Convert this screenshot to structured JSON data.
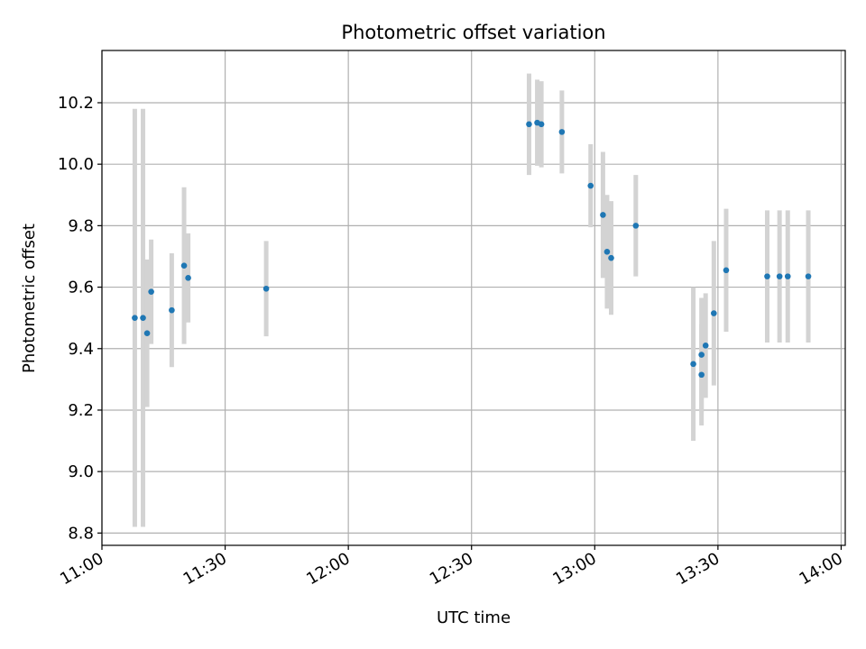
{
  "chart_data": {
    "type": "scatter",
    "title": "Photometric offset variation",
    "xlabel": "UTC time",
    "ylabel": "Photometric offset",
    "xlim": [
      "11:00",
      "14:01"
    ],
    "ylim": [
      8.76,
      10.37
    ],
    "grid": true,
    "x_ticks": [
      "11:00",
      "11:30",
      "12:00",
      "12:30",
      "13:00",
      "13:30",
      "14:00"
    ],
    "y_ticks": [
      "8.8",
      "9.0",
      "9.2",
      "9.4",
      "9.6",
      "9.8",
      "10.0",
      "10.2"
    ],
    "colors": {
      "marker": "#1f77b4",
      "errorbar": "#d3d3d3",
      "grid": "#b0b0b0"
    },
    "points": [
      {
        "x": "11:08",
        "y": 9.5,
        "err": 0.68
      },
      {
        "x": "11:10",
        "y": 9.5,
        "err": 0.68
      },
      {
        "x": "11:11",
        "y": 9.45,
        "err": 0.24
      },
      {
        "x": "11:12",
        "y": 9.585,
        "err": 0.17
      },
      {
        "x": "11:17",
        "y": 9.525,
        "err": 0.185
      },
      {
        "x": "11:20",
        "y": 9.67,
        "err": 0.255
      },
      {
        "x": "11:21",
        "y": 9.63,
        "err": 0.145
      },
      {
        "x": "11:40",
        "y": 9.595,
        "err": 0.155
      },
      {
        "x": "12:44",
        "y": 10.13,
        "err": 0.165
      },
      {
        "x": "12:46",
        "y": 10.135,
        "err": 0.14
      },
      {
        "x": "12:47",
        "y": 10.13,
        "err": 0.14
      },
      {
        "x": "12:52",
        "y": 10.105,
        "err": 0.135
      },
      {
        "x": "12:59",
        "y": 9.93,
        "err": 0.135
      },
      {
        "x": "13:02",
        "y": 9.835,
        "err": 0.205
      },
      {
        "x": "13:03",
        "y": 9.715,
        "err": 0.185
      },
      {
        "x": "13:04",
        "y": 9.695,
        "err": 0.185
      },
      {
        "x": "13:10",
        "y": 9.8,
        "err": 0.165
      },
      {
        "x": "13:24",
        "y": 9.35,
        "err": 0.25
      },
      {
        "x": "13:26",
        "y": 9.315,
        "err": 0.165
      },
      {
        "x": "13:26",
        "y": 9.38,
        "err": 0.185
      },
      {
        "x": "13:27",
        "y": 9.41,
        "err": 0.17
      },
      {
        "x": "13:29",
        "y": 9.515,
        "err": 0.235
      },
      {
        "x": "13:32",
        "y": 9.655,
        "err": 0.2
      },
      {
        "x": "13:42",
        "y": 9.635,
        "err": 0.215
      },
      {
        "x": "13:45",
        "y": 9.635,
        "err": 0.215
      },
      {
        "x": "13:47",
        "y": 9.635,
        "err": 0.215
      },
      {
        "x": "13:52",
        "y": 9.635,
        "err": 0.215
      }
    ]
  }
}
